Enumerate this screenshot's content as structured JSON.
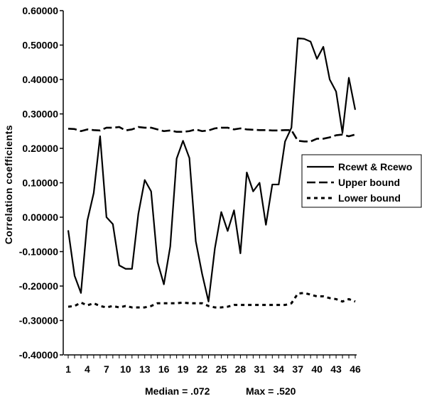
{
  "chart_data": {
    "type": "line",
    "title": "",
    "xlabel": "",
    "ylabel": "Correlation coefficients",
    "ylim": [
      -0.4,
      0.6
    ],
    "y_ticks": [
      "0.60000",
      "0.50000",
      "0.40000",
      "0.30000",
      "0.20000",
      "0.10000",
      "0.00000",
      "-0.10000",
      "-0.20000",
      "-0.30000",
      "-0.40000"
    ],
    "y_tick_values": [
      0.6,
      0.5,
      0.4,
      0.3,
      0.2,
      0.1,
      0.0,
      -0.1,
      -0.2,
      -0.3,
      -0.4
    ],
    "x_ticks": [
      "1",
      "4",
      "7",
      "10",
      "13",
      "16",
      "19",
      "22",
      "25",
      "28",
      "31",
      "34",
      "37",
      "40",
      "43",
      "46"
    ],
    "x_tick_values": [
      1,
      4,
      7,
      10,
      13,
      16,
      19,
      22,
      25,
      28,
      31,
      34,
      37,
      40,
      43,
      46
    ],
    "x": [
      1,
      2,
      3,
      4,
      5,
      6,
      7,
      8,
      9,
      10,
      11,
      12,
      13,
      14,
      15,
      16,
      17,
      18,
      19,
      20,
      21,
      22,
      23,
      24,
      25,
      26,
      27,
      28,
      29,
      30,
      31,
      32,
      33,
      34,
      35,
      36,
      37,
      38,
      39,
      40,
      41,
      42,
      43,
      44,
      45,
      46
    ],
    "series": [
      {
        "name": "Rcewt & Rcewo",
        "style": "solid",
        "values": [
          -0.038,
          -0.17,
          -0.22,
          -0.01,
          0.07,
          0.235,
          0.0,
          -0.02,
          -0.14,
          -0.15,
          -0.15,
          0.01,
          0.108,
          0.075,
          -0.13,
          -0.195,
          -0.085,
          0.17,
          0.222,
          0.172,
          -0.07,
          -0.165,
          -0.245,
          -0.09,
          0.015,
          -0.04,
          0.02,
          -0.105,
          0.13,
          0.075,
          0.1,
          -0.022,
          0.095,
          0.095,
          0.22,
          0.26,
          0.52,
          0.518,
          0.51,
          0.46,
          0.495,
          0.4,
          0.365,
          0.245,
          0.405,
          0.312
        ]
      },
      {
        "name": "Upper bound",
        "style": "dashed",
        "values": [
          0.257,
          0.256,
          0.25,
          0.255,
          0.253,
          0.252,
          0.26,
          0.26,
          0.262,
          0.252,
          0.255,
          0.262,
          0.26,
          0.26,
          0.255,
          0.25,
          0.252,
          0.248,
          0.248,
          0.25,
          0.255,
          0.25,
          0.252,
          0.258,
          0.26,
          0.26,
          0.255,
          0.258,
          0.255,
          0.254,
          0.253,
          0.253,
          0.252,
          0.252,
          0.253,
          0.253,
          0.222,
          0.22,
          0.22,
          0.228,
          0.228,
          0.232,
          0.238,
          0.24,
          0.235,
          0.24
        ]
      },
      {
        "name": "Lower bound",
        "style": "dotted",
        "values": [
          -0.26,
          -0.258,
          -0.248,
          -0.256,
          -0.25,
          -0.258,
          -0.262,
          -0.258,
          -0.262,
          -0.258,
          -0.262,
          -0.262,
          -0.262,
          -0.258,
          -0.25,
          -0.25,
          -0.25,
          -0.25,
          -0.248,
          -0.25,
          -0.25,
          -0.25,
          -0.258,
          -0.262,
          -0.262,
          -0.26,
          -0.255,
          -0.255,
          -0.255,
          -0.255,
          -0.255,
          -0.255,
          -0.255,
          -0.255,
          -0.255,
          -0.25,
          -0.222,
          -0.22,
          -0.225,
          -0.23,
          -0.23,
          -0.235,
          -0.238,
          -0.245,
          -0.238,
          -0.245
        ]
      }
    ],
    "legend_position": "right"
  },
  "footer": {
    "median_label": "Median =  .072",
    "max_label": "Max = .520"
  }
}
